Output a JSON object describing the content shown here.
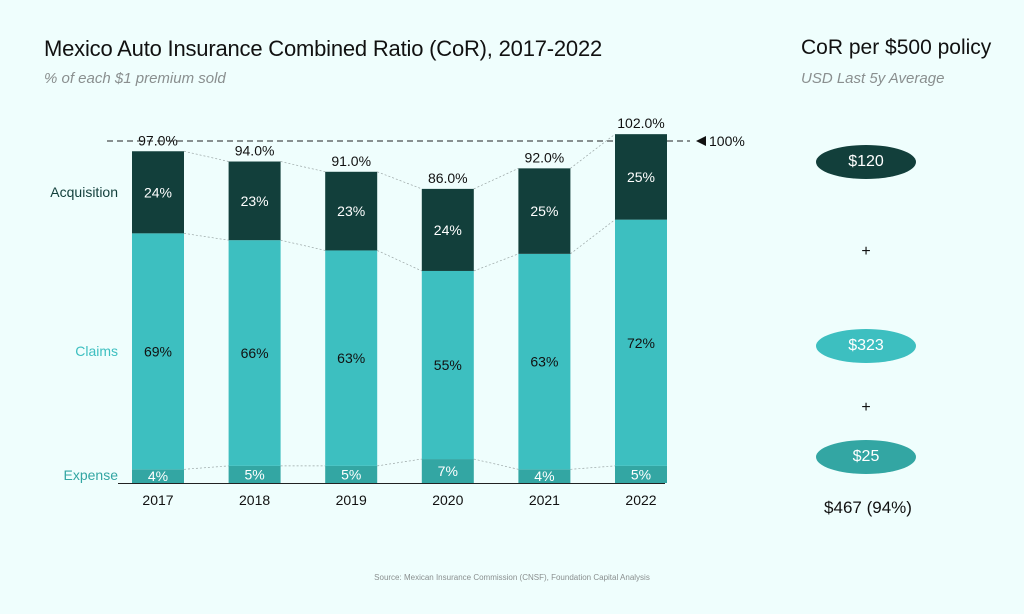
{
  "title": "Mexico Auto Insurance Combined Ratio (CoR), 2017-2022",
  "subtitle": "% of each $1 premium sold",
  "side": {
    "title": "CoR per $500 policy",
    "subtitle": "USD Last 5y Average",
    "acquisition": "$120",
    "claims": "$323",
    "expense": "$25",
    "plus": "+",
    "total": "$467 (94%)"
  },
  "source": "Source: Mexican Insurance Commission (CNSF), Foundation Capital Analysis",
  "colors": {
    "acquisition": "#123f3b",
    "claims": "#3dbfc0",
    "expense": "#33a6a3",
    "background": "#effefd"
  },
  "chart_data": {
    "type": "bar",
    "stacked": true,
    "categories": [
      "2017",
      "2018",
      "2019",
      "2020",
      "2021",
      "2022"
    ],
    "series": [
      {
        "name": "Expense",
        "values": [
          4,
          5,
          5,
          7,
          4,
          5
        ],
        "labels": [
          "4%",
          "5%",
          "5%",
          "7%",
          "4%",
          "5%"
        ]
      },
      {
        "name": "Claims",
        "values": [
          69,
          66,
          63,
          55,
          63,
          72
        ],
        "labels": [
          "69%",
          "66%",
          "63%",
          "55%",
          "63%",
          "72%"
        ]
      },
      {
        "name": "Acquisition",
        "values": [
          24,
          23,
          23,
          24,
          25,
          25
        ],
        "labels": [
          "24%",
          "23%",
          "23%",
          "24%",
          "25%",
          "25%"
        ]
      }
    ],
    "totals": [
      97.0,
      94.0,
      91.0,
      86.0,
      92.0,
      102.0
    ],
    "total_labels": [
      "97.0%",
      "94.0%",
      "91.0%",
      "86.0%",
      "92.0%",
      "102.0%"
    ],
    "reference_line": {
      "value": 100,
      "label": "100%"
    },
    "ylim": [
      0,
      103
    ]
  }
}
